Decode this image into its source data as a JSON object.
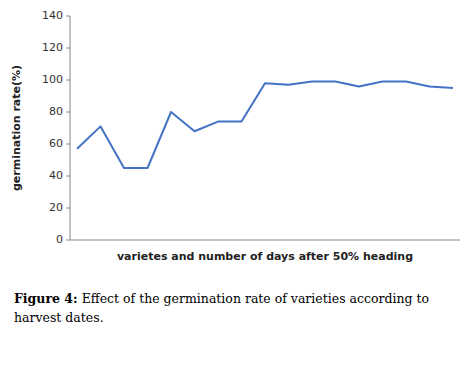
{
  "chart_data": {
    "type": "line",
    "categories": [
      null,
      null,
      null,
      null,
      null,
      null,
      null,
      null,
      null,
      null,
      null,
      null,
      null,
      null,
      null,
      null,
      null
    ],
    "values": [
      57,
      71,
      45,
      45,
      80,
      68,
      74,
      74,
      98,
      97,
      99,
      99,
      96,
      99,
      99,
      96,
      95
    ],
    "color": "#4472C4",
    "ylabel": "germination rate(%)",
    "xlabel": "varietes and number of days after 50% heading",
    "ylim": [
      0,
      140
    ],
    "yticks": [
      0,
      20,
      40,
      60,
      80,
      100,
      120,
      140
    ],
    "grid": false,
    "tick_labels": "y",
    "annotations": [
      "Figure 4:",
      "Effect of the germination rate of varieties according to harvest dates."
    ]
  }
}
